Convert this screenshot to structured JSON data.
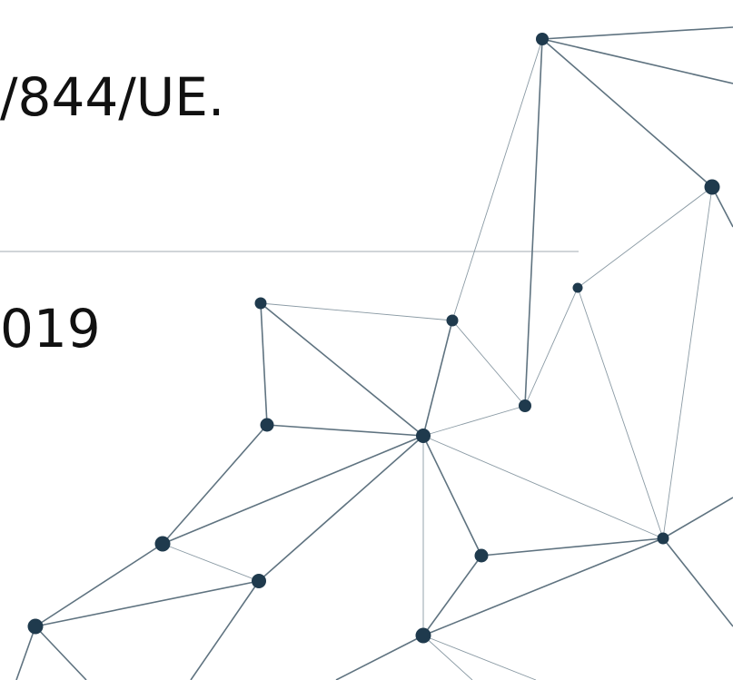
{
  "slide": {
    "heading_fragment": "/844/UE.",
    "date_fragment": "019"
  }
}
